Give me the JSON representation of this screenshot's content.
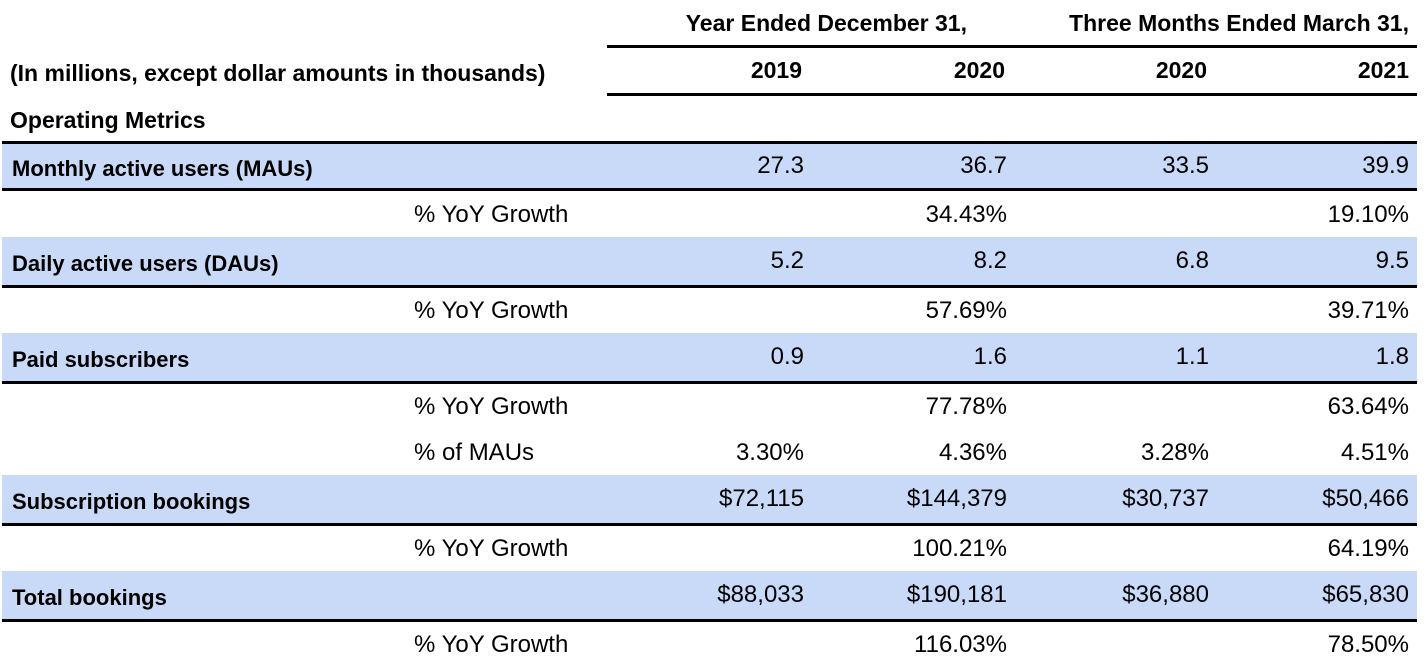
{
  "header": {
    "group_year": "Year Ended December 31,",
    "group_quarter": "Three Months Ended March 31,",
    "units_label": "(In millions, except dollar amounts in thousands)",
    "years": [
      "2019",
      "2020",
      "2020",
      "2021"
    ]
  },
  "section_title": "Operating Metrics",
  "rows": {
    "mau": {
      "label": "Monthly active users (MAUs)",
      "values": [
        "27.3",
        "36.7",
        "33.5",
        "39.9"
      ]
    },
    "mau_growth": {
      "label": "% YoY Growth",
      "values": [
        "",
        "34.43%",
        "",
        "19.10%"
      ]
    },
    "dau": {
      "label": "Daily active users (DAUs)",
      "values": [
        "5.2",
        "8.2",
        "6.8",
        "9.5"
      ]
    },
    "dau_growth": {
      "label": "% YoY Growth",
      "values": [
        "",
        "57.69%",
        "",
        "39.71%"
      ]
    },
    "paid": {
      "label": "Paid subscribers",
      "values": [
        "0.9",
        "1.6",
        "1.1",
        "1.8"
      ]
    },
    "paid_growth": {
      "label": "% YoY Growth",
      "values": [
        "",
        "77.78%",
        "",
        "63.64%"
      ]
    },
    "paid_pct_mau": {
      "label": "% of MAUs",
      "values": [
        "3.30%",
        "4.36%",
        "3.28%",
        "4.51%"
      ]
    },
    "sub_bookings": {
      "label": "Subscription bookings",
      "values": [
        "$72,115",
        "$144,379",
        "$30,737",
        "$50,466"
      ]
    },
    "sub_growth": {
      "label": "% YoY Growth",
      "values": [
        "",
        "100.21%",
        "",
        "64.19%"
      ]
    },
    "total_bookings": {
      "label": "Total bookings",
      "values": [
        "$88,033",
        "$190,181",
        "$36,880",
        "$65,830"
      ]
    },
    "total_growth": {
      "label": "% YoY Growth",
      "values": [
        "",
        "116.03%",
        "",
        "78.50%"
      ]
    }
  },
  "colors": {
    "shaded_row": "#c9daf8",
    "rule": "#000000",
    "text": "#000000"
  }
}
